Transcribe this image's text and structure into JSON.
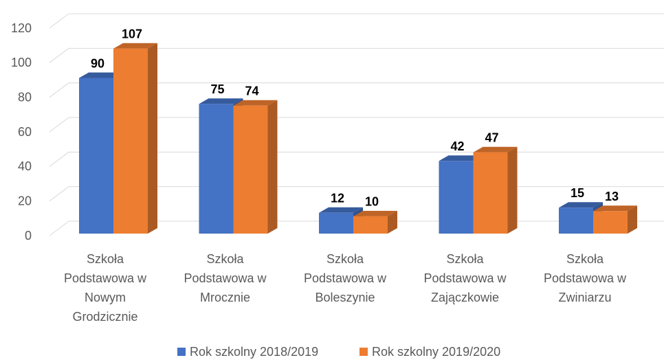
{
  "chart_data": {
    "type": "bar3d",
    "categories": [
      "Szkoła Podstawowa w Nowym Grodzicznie",
      "Szkoła Podstawowa w Mrocznie",
      "Szkoła Podstawowa w Boleszynie",
      "Szkoła Podstawowa w Zajączkowie",
      "Szkoła Podstawowa w Zwiniarzu"
    ],
    "series": [
      {
        "name": "Rok szkolny 2018/2019",
        "color": "#4472c4",
        "values": [
          90,
          75,
          12,
          42,
          15
        ]
      },
      {
        "name": "Rok szkolny 2019/2020",
        "color": "#ed7d31",
        "values": [
          107,
          74,
          10,
          47,
          13
        ]
      }
    ],
    "ylim": [
      0,
      120
    ],
    "yticks": [
      0,
      20,
      40,
      60,
      80,
      100,
      120
    ],
    "grid": true,
    "legend": "bottom"
  }
}
